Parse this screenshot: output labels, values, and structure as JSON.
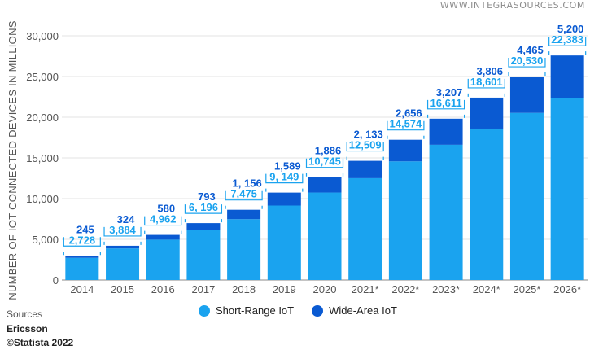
{
  "watermark": "WWW.INTEGRASOURCES.COM",
  "sources_label": "Sources",
  "source_name": "Ericsson",
  "copyright": "©Statista 2022",
  "colors": {
    "short_range": "#1aa3ef",
    "wide_area": "#0a5ad2",
    "axis_text": "#555555",
    "grid": "#e3e3e3"
  },
  "chart_data": {
    "type": "bar",
    "stacked": true,
    "ylabel": "NUMBER OF IOT CONNECTED DEVICES IN MILLIONS",
    "ylim": [
      0,
      30000
    ],
    "yticks": [
      0,
      5000,
      10000,
      15000,
      20000,
      25000,
      30000
    ],
    "ytick_labels": [
      "0",
      "5,000",
      "10,000",
      "15,000",
      "20,000",
      "25,000",
      "30,000"
    ],
    "grid": true,
    "legend_position": "bottom-center",
    "categories": [
      "2014",
      "2015",
      "2016",
      "2017",
      "2018",
      "2019",
      "2020",
      "2021*",
      "2022*",
      "2023*",
      "2024*",
      "2025*",
      "2026*"
    ],
    "series": [
      {
        "name": "Short-Range IoT",
        "values": [
          2728,
          3884,
          4962,
          6196,
          7475,
          9149,
          10745,
          12509,
          14574,
          16611,
          18601,
          20530,
          22383
        ],
        "labels": [
          "2,728",
          "3,884",
          "4,962",
          "6, 196",
          "7,475",
          "9, 149",
          "10,745",
          "12,509",
          "14,574",
          "16,611",
          "18,601",
          "20,530",
          "22,383"
        ]
      },
      {
        "name": "Wide-Area IoT",
        "values": [
          245,
          324,
          580,
          793,
          1156,
          1589,
          1886,
          2133,
          2656,
          3207,
          3806,
          4465,
          5200
        ],
        "labels": [
          "245",
          "324",
          "580",
          "793",
          "1, 156",
          "1,589",
          "1,886",
          "2, 133",
          "2,656",
          "3,207",
          "3,806",
          "4,465",
          "5,200"
        ]
      }
    ]
  }
}
